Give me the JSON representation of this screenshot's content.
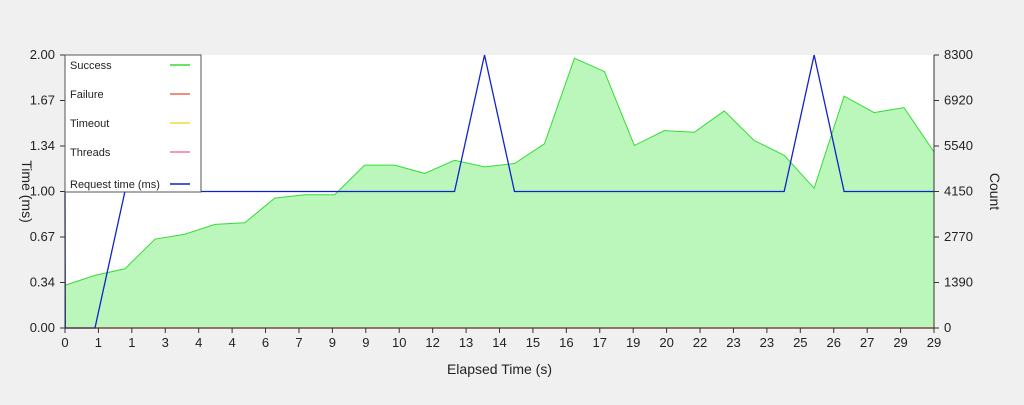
{
  "chart_data": {
    "type": "area",
    "xlabel": "Elapsed Time (s)",
    "ylabel_left": "Time (ms)",
    "ylabel_right": "Count",
    "x_ticks": [
      "0",
      "1",
      "1",
      "3",
      "4",
      "4",
      "6",
      "7",
      "9",
      "9",
      "10",
      "12",
      "13",
      "14",
      "15",
      "16",
      "17",
      "19",
      "20",
      "22",
      "23",
      "23",
      "25",
      "26",
      "27",
      "29",
      "29"
    ],
    "x_range": [
      0,
      29
    ],
    "y_left_ticks": [
      "0.00",
      "0.34",
      "0.67",
      "1.00",
      "1.34",
      "1.67",
      "2.00"
    ],
    "y_left_range": [
      0,
      2.0
    ],
    "y_right_ticks": [
      "0",
      "1390",
      "2770",
      "4150",
      "5540",
      "6920",
      "8300"
    ],
    "y_right_range": [
      0,
      8300
    ],
    "grid": false,
    "legend_position": "top-left",
    "series": [
      {
        "name": "Success",
        "axis": "right",
        "style": "area",
        "color": "#33dd33",
        "fill": "#bbf7bb",
        "x": [
          0,
          1,
          2,
          3,
          4,
          5,
          6,
          7,
          8,
          9,
          10,
          11,
          12,
          13,
          14,
          15,
          16,
          17,
          18,
          19,
          20,
          21,
          22,
          23,
          24,
          25,
          26,
          27,
          28,
          29
        ],
        "values": [
          1300,
          1600,
          1800,
          2700,
          2850,
          3150,
          3200,
          3950,
          4050,
          4050,
          4950,
          4950,
          4700,
          5100,
          4900,
          5000,
          5600,
          8200,
          7800,
          5550,
          6000,
          5950,
          6600,
          5700,
          5250,
          4250,
          7050,
          6550,
          6700,
          5350
        ]
      },
      {
        "name": "Failure",
        "axis": "left",
        "style": "line",
        "color": "#ee6655",
        "x": [
          0,
          29
        ],
        "values": [
          0,
          0
        ]
      },
      {
        "name": "Timeout",
        "axis": "left",
        "style": "line",
        "color": "#eedd33",
        "x": [
          0,
          29
        ],
        "values": [
          0,
          0
        ]
      },
      {
        "name": "Threads",
        "axis": "left",
        "style": "line",
        "color": "#ee77aa",
        "x": [
          0,
          29
        ],
        "values": [
          0,
          0
        ]
      },
      {
        "name": "Request time (ms)",
        "axis": "left",
        "style": "line",
        "color": "#1122cc",
        "x": [
          0,
          0.01,
          1,
          2,
          13,
          14,
          15,
          24,
          25,
          26,
          29
        ],
        "values": [
          1.0,
          0,
          0,
          1.0,
          1.0,
          2.0,
          1.0,
          1.0,
          2.0,
          1.0,
          1.0
        ]
      }
    ]
  }
}
